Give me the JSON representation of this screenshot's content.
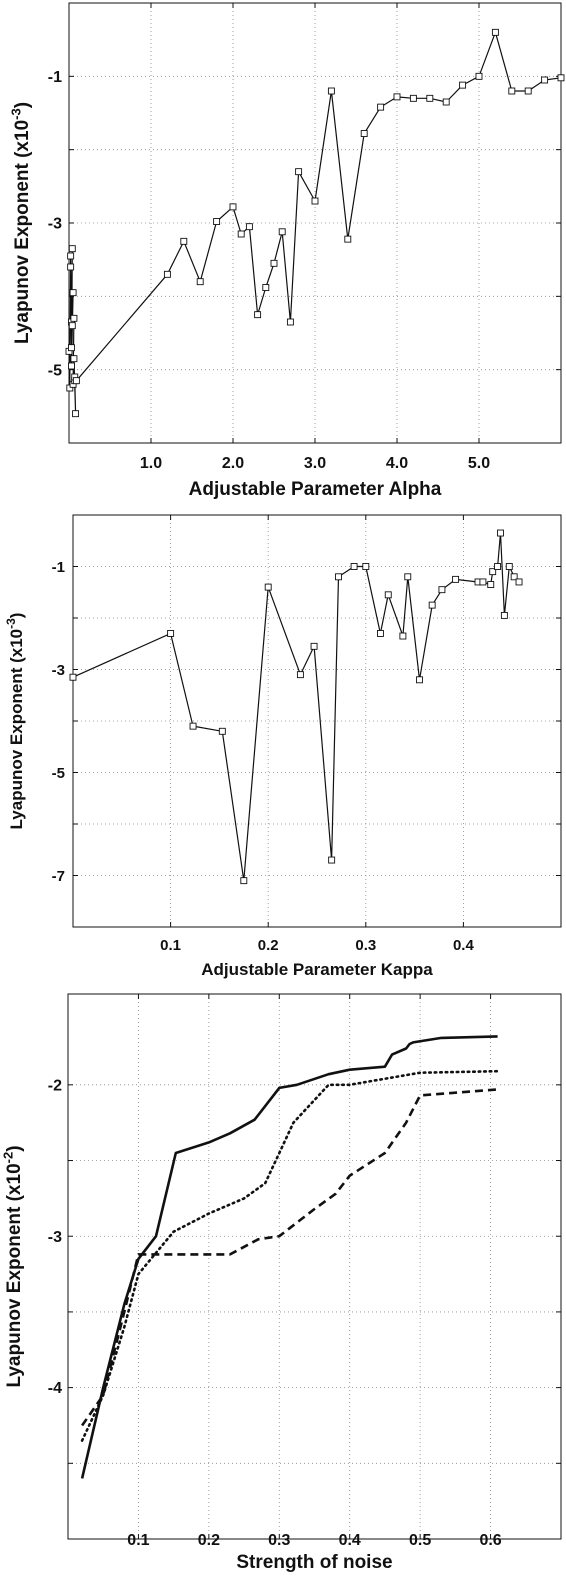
{
  "chart_data": [
    {
      "type": "line",
      "xlabel": "Adjustable Parameter Alpha",
      "ylabel": "Lyapunov Exponent (x10",
      "ylabel_exp": "-3",
      "ylabel_close": ")",
      "xlim": [
        0,
        6.0
      ],
      "ylim": [
        -6.0,
        0.0
      ],
      "xticks": [
        1.0,
        2.0,
        3.0,
        4.0,
        5.0
      ],
      "xtick_labels": [
        "1.0",
        "2.0",
        "3.0",
        "4.0",
        "5.0"
      ],
      "yticks": [
        -1,
        -3,
        -5
      ],
      "ytick_labels": [
        "-1",
        "-3",
        "-5"
      ],
      "ygrid_minor": [
        -2,
        -4
      ],
      "grid": true,
      "marker": "square",
      "series": [
        {
          "x": [
            0.0,
            0.01,
            0.02,
            0.03,
            0.02,
            0.03,
            0.04,
            0.03,
            0.05,
            0.04,
            0.06,
            0.05,
            0.07,
            0.06,
            0.08,
            0.07,
            0.09,
            1.2,
            1.4,
            1.6,
            1.8,
            2.0,
            2.1,
            2.2,
            2.3,
            2.4,
            2.5,
            2.6,
            2.7,
            2.8,
            3.0,
            3.2,
            3.4,
            3.6,
            3.8,
            4.0,
            4.2,
            4.4,
            4.6,
            4.8,
            5.0,
            5.2,
            5.4,
            5.6,
            5.8,
            6.0
          ],
          "y": [
            -4.75,
            -5.25,
            -3.45,
            -4.7,
            -3.6,
            -4.35,
            -3.35,
            -4.95,
            -3.95,
            -4.4,
            -4.3,
            -5.2,
            -5.15,
            -4.85,
            -5.6,
            -5.1,
            -5.15,
            -3.7,
            -3.25,
            -3.8,
            -2.98,
            -2.78,
            -3.15,
            -3.05,
            -4.25,
            -3.88,
            -3.55,
            -3.12,
            -4.35,
            -2.3,
            -2.7,
            -1.2,
            -3.22,
            -1.78,
            -1.42,
            -1.28,
            -1.3,
            -1.3,
            -1.35,
            -1.12,
            -1.0,
            -0.4,
            -1.2,
            -1.2,
            -1.05,
            -1.02
          ]
        }
      ]
    },
    {
      "type": "line",
      "xlabel": "Adjustable Parameter Kappa",
      "ylabel": "Lyapunov Exponent (x10",
      "ylabel_exp": "-3",
      "ylabel_close": ")",
      "xlim": [
        0,
        0.5
      ],
      "ylim": [
        -8.0,
        0.0
      ],
      "xticks": [
        0.1,
        0.2,
        0.3,
        0.4
      ],
      "xtick_labels": [
        "0.1",
        "0.2",
        "0.3",
        "0.4"
      ],
      "yticks": [
        -1,
        -3,
        -5,
        -7
      ],
      "ytick_labels": [
        "-1",
        "-3",
        "-5",
        "-7"
      ],
      "ygrid_minor": [
        -2,
        -4,
        -6
      ],
      "grid": true,
      "marker": "square",
      "series": [
        {
          "x": [
            0.0,
            0.1,
            0.123,
            0.153,
            0.175,
            0.2,
            0.233,
            0.247,
            0.265,
            0.272,
            0.288,
            0.3,
            0.315,
            0.323,
            0.338,
            0.343,
            0.355,
            0.368,
            0.378,
            0.392,
            0.415,
            0.42,
            0.428,
            0.43,
            0.435,
            0.438,
            0.442,
            0.447,
            0.452,
            0.457
          ],
          "y": [
            -3.15,
            -2.3,
            -4.1,
            -4.2,
            -7.1,
            -1.4,
            -3.1,
            -2.55,
            -6.7,
            -1.2,
            -1.0,
            -1.0,
            -2.3,
            -1.55,
            -2.35,
            -1.2,
            -3.2,
            -1.75,
            -1.45,
            -1.25,
            -1.3,
            -1.3,
            -1.35,
            -1.1,
            -1.0,
            -0.35,
            -1.95,
            -1.0,
            -1.2,
            -1.3
          ]
        }
      ]
    },
    {
      "type": "line",
      "xlabel": "Strength of noise",
      "ylabel": "Lyapunov Exponent (x10",
      "ylabel_exp": "-2",
      "ylabel_close": ")",
      "xlim": [
        0,
        0.7
      ],
      "ylim": [
        -5.0,
        -1.4
      ],
      "xticks": [
        0.1,
        0.2,
        0.3,
        0.4,
        0.5,
        0.6
      ],
      "xtick_labels": [
        "0.1",
        "0.2",
        "0.3",
        "0.4",
        "0.5",
        "0.6"
      ],
      "yticks": [
        -2,
        -3,
        -4
      ],
      "ytick_labels": [
        "-2",
        "-3",
        "-4"
      ],
      "ygrid_minor": [
        -2.5,
        -3.5,
        -4.5
      ],
      "grid": true,
      "series": [
        {
          "style": "solid",
          "x": [
            0.02,
            0.05,
            0.08,
            0.1,
            0.125,
            0.153,
            0.2,
            0.23,
            0.265,
            0.3,
            0.325,
            0.37,
            0.4,
            0.45,
            0.46,
            0.48,
            0.485,
            0.49,
            0.53,
            0.61
          ],
          "y": [
            -4.6,
            -4.0,
            -3.45,
            -3.15,
            -3.0,
            -2.45,
            -2.38,
            -2.32,
            -2.23,
            -2.02,
            -2.0,
            -1.93,
            -1.9,
            -1.88,
            -1.8,
            -1.76,
            -1.73,
            -1.72,
            -1.69,
            -1.68
          ]
        },
        {
          "style": "dotted",
          "x": [
            0.02,
            0.05,
            0.08,
            0.1,
            0.15,
            0.2,
            0.25,
            0.28,
            0.3,
            0.32,
            0.37,
            0.4,
            0.5,
            0.61
          ],
          "y": [
            -4.35,
            -4.05,
            -3.6,
            -3.25,
            -2.97,
            -2.85,
            -2.75,
            -2.65,
            -2.45,
            -2.25,
            -2.0,
            -2.0,
            -1.92,
            -1.91
          ]
        },
        {
          "style": "dashed",
          "x": [
            0.02,
            0.05,
            0.08,
            0.1,
            0.125,
            0.23,
            0.27,
            0.3,
            0.35,
            0.38,
            0.4,
            0.45,
            0.48,
            0.5,
            0.61
          ],
          "y": [
            -4.25,
            -4.05,
            -3.5,
            -3.12,
            -3.12,
            -3.12,
            -3.02,
            -3.0,
            -2.82,
            -2.72,
            -2.6,
            -2.45,
            -2.25,
            -2.07,
            -2.03
          ]
        }
      ]
    }
  ]
}
